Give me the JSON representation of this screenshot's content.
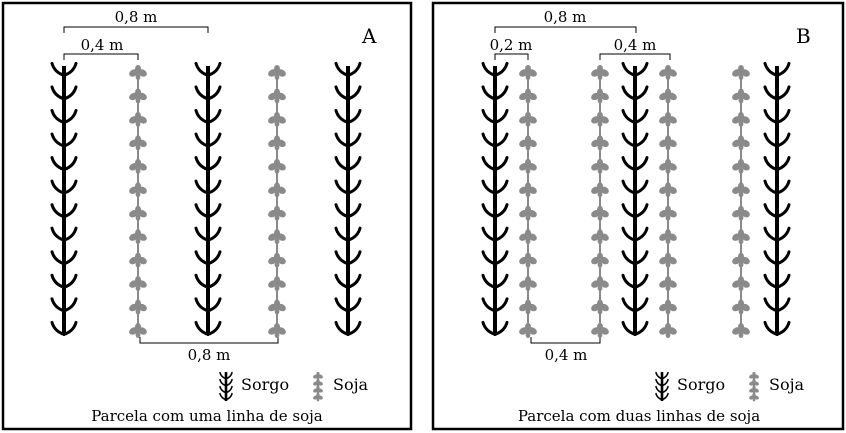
{
  "colors": {
    "sorgo": "#000000",
    "soja": "#8a8a8a",
    "border": "#000000"
  },
  "icons": {
    "sorgo": "sorghum-plant-icon",
    "soja": "soybean-plant-icon"
  },
  "panels": [
    {
      "id": "A",
      "letter": "A",
      "caption": "Parcela com uma linha de soja",
      "rows": [
        "sorgo",
        "soja",
        "sorgo",
        "soja",
        "sorgo"
      ],
      "dimensions": [
        "0,8 m",
        "0,4 m",
        "0,8 m"
      ],
      "legend": {
        "sorgo": "Sorgo",
        "soja": "Soja"
      }
    },
    {
      "id": "B",
      "letter": "B",
      "caption": "Parcela com duas linhas de soja",
      "rows": [
        "sorgo",
        "soja",
        "soja",
        "sorgo",
        "soja",
        "soja",
        "sorgo"
      ],
      "dimensions": [
        "0,8 m",
        "0,2 m",
        "0,4 m",
        "0,4 m"
      ],
      "legend": {
        "sorgo": "Sorgo",
        "soja": "Soja"
      }
    }
  ]
}
